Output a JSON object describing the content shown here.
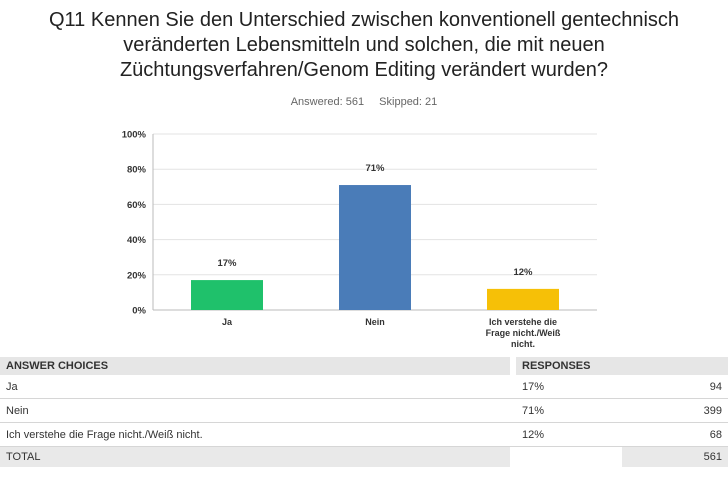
{
  "question": {
    "title": "Q11 Kennen Sie den Unterschied zwischen konventionell gentechnisch\nveränderten Lebensmitteln und solchen, die mit neuen\nZüchtungsverfahren/Genom Editing verändert wurden?",
    "answered": "Answered: 561",
    "skipped": "Skipped: 21"
  },
  "chart_data": {
    "type": "bar",
    "categories": [
      [
        "Ja"
      ],
      [
        "Nein"
      ],
      [
        "Ich verstehe die",
        "Frage nicht./Weiß",
        "nicht."
      ]
    ],
    "values": [
      17,
      71,
      12
    ],
    "data_labels": [
      "17%",
      "71%",
      "12%"
    ],
    "colors": [
      "#1fc16b",
      "#4a7cb8",
      "#f6c007"
    ],
    "ylim": [
      0,
      100
    ],
    "yticks": [
      0,
      20,
      40,
      60,
      80,
      100
    ],
    "ytick_labels": [
      "0%",
      "20%",
      "40%",
      "60%",
      "80%",
      "100%"
    ],
    "grid": true
  },
  "table": {
    "headers": {
      "choices": "ANSWER CHOICES",
      "responses": "RESPONSES"
    },
    "rows": [
      {
        "choice": "Ja",
        "percent": "17%",
        "count": "94"
      },
      {
        "choice": "Nein",
        "percent": "71%",
        "count": "399"
      },
      {
        "choice": "Ich verstehe die Frage nicht./Weiß nicht.",
        "percent": "12%",
        "count": "68"
      }
    ],
    "total": {
      "label": "TOTAL",
      "count": "561"
    }
  }
}
